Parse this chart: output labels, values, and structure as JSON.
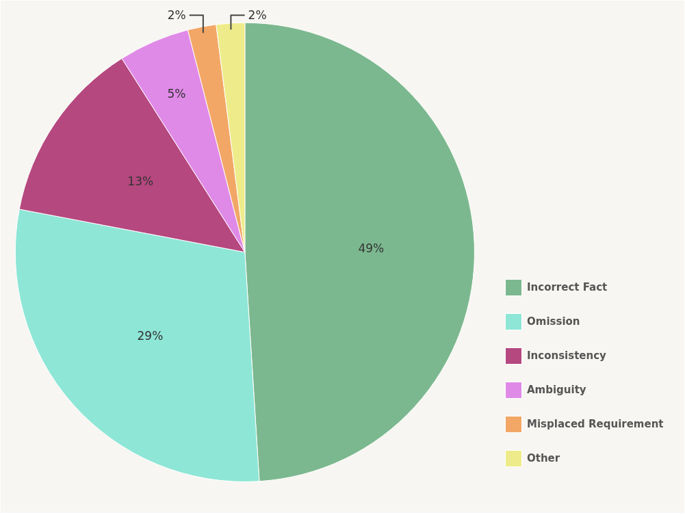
{
  "chart_data": {
    "type": "pie",
    "categories": [
      "Incorrect Fact",
      "Omission",
      "Inconsistency",
      "Ambiguity",
      "Misplaced Requirement",
      "Other"
    ],
    "values": [
      49,
      29,
      13,
      5,
      2,
      2
    ],
    "colors": [
      "#7cb88f",
      "#8ee6d6",
      "#b5487f",
      "#e08ae8",
      "#f2a766",
      "#eeec8a"
    ],
    "value_labels": [
      "49%",
      "29%",
      "13%",
      "5%",
      "2%",
      "2%"
    ],
    "legend": "right"
  }
}
